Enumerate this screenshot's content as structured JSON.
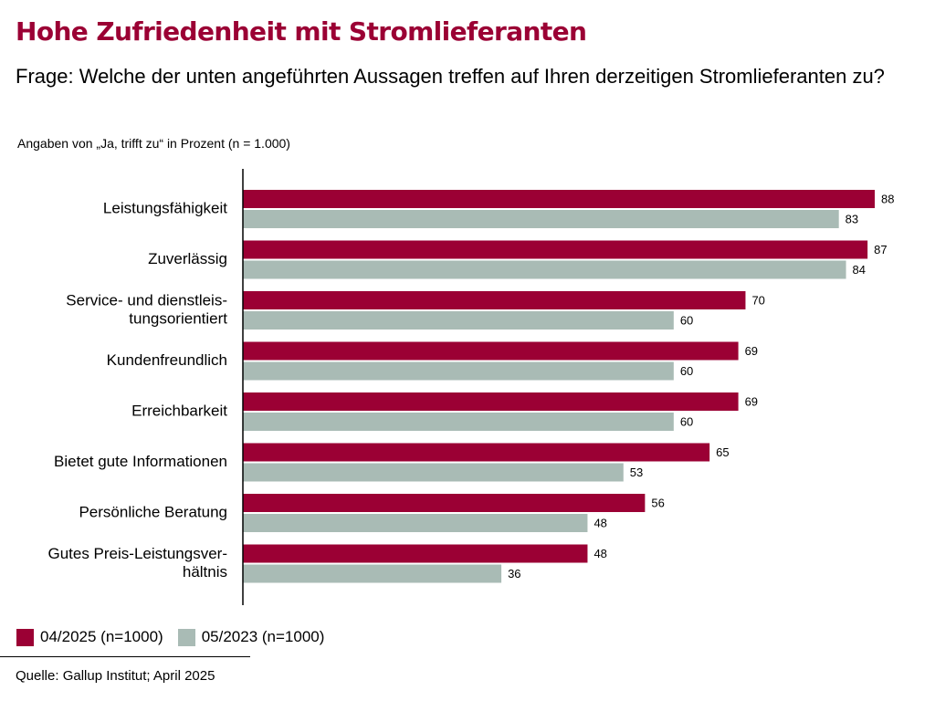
{
  "title": "Hohe Zufriedenheit mit Stromlieferanten",
  "question": "Frage: Welche der unten angeführten Aussagen treffen auf Ihren derzeitigen Stromlieferanten zu?",
  "units_note": "Angaben von „Ja, trifft zu“ in Prozent (n = 1.000)",
  "source": "Quelle: Gallup Institut; April 2025",
  "colors": {
    "title": "#9b0034",
    "series_2025": "#9b0034",
    "series_2023": "#a9bbb5"
  },
  "chart_data": {
    "type": "bar",
    "orientation": "horizontal",
    "categories": [
      [
        "Leistungsfähigkeit"
      ],
      [
        "Zuverlässig"
      ],
      [
        "Service- und dienstleis-",
        "tungsorientiert"
      ],
      [
        "Kundenfreundlich"
      ],
      [
        "Erreichbarkeit"
      ],
      [
        "Bietet gute Informationen"
      ],
      [
        "Persönliche Beratung"
      ],
      [
        "Gutes Preis-Leistungsver-",
        "hältnis"
      ]
    ],
    "series": [
      {
        "name": "04/2025 (n=1000)",
        "color": "#9b0034",
        "values": [
          88,
          87,
          70,
          69,
          69,
          65,
          56,
          48
        ]
      },
      {
        "name": "05/2023 (n=1000)",
        "color": "#a9bbb5",
        "values": [
          83,
          84,
          60,
          60,
          60,
          53,
          48,
          36
        ]
      }
    ],
    "xlim": [
      0,
      100
    ],
    "data_labels": true,
    "legend_position": "bottom-left",
    "grid": false
  }
}
